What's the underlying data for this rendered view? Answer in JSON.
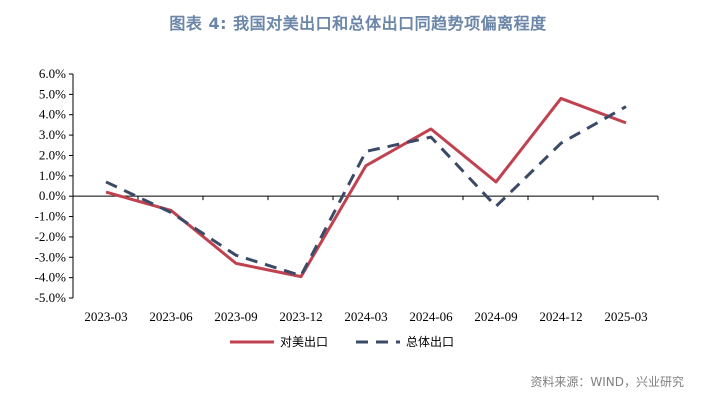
{
  "header": {
    "title": "图表 4:  我国对美出口和总体出口同趋势项偏离程度"
  },
  "footer": {
    "source": "资料来源：WIND，兴业研究"
  },
  "chart_data": {
    "type": "line",
    "title": "图表 4:  我国对美出口和总体出口同趋势项偏离程度",
    "xlabel": "",
    "ylabel": "",
    "ylim": [
      -5,
      6
    ],
    "y_ticks": [
      "6.0%",
      "5.0%",
      "4.0%",
      "3.0%",
      "2.0%",
      "1.0%",
      "0.0%",
      "-1.0%",
      "-2.0%",
      "-3.0%",
      "-4.0%",
      "-5.0%"
    ],
    "categories": [
      "2023-03",
      "2023-06",
      "2023-09",
      "2023-12",
      "2024-03",
      "2024-06",
      "2024-09",
      "2024-12",
      "2025-03"
    ],
    "grid": false,
    "legend": "bottom",
    "series": [
      {
        "name": "对美出口",
        "color": "#c0414f",
        "style": "solid",
        "values": [
          0.2,
          -0.7,
          -3.3,
          -3.95,
          1.5,
          3.3,
          0.7,
          4.8,
          3.6
        ]
      },
      {
        "name": "总体出口",
        "color": "#3b4a66",
        "style": "dashed",
        "values": [
          0.7,
          -0.8,
          -2.9,
          -3.9,
          2.2,
          2.9,
          -0.5,
          2.6,
          4.4
        ]
      }
    ]
  }
}
